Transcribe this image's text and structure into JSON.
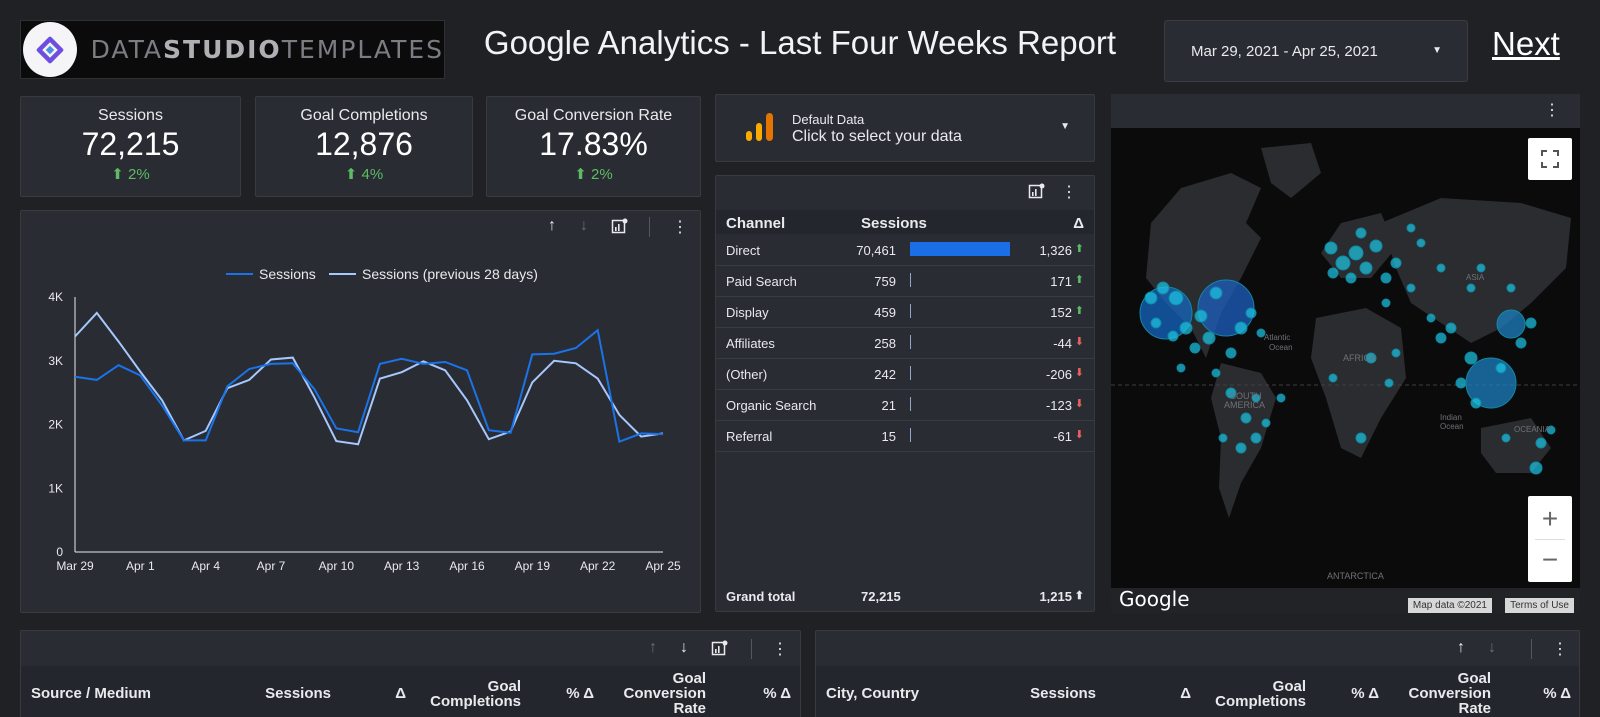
{
  "header": {
    "logo_text_a": "DATA",
    "logo_text_b": "STUDIO",
    "logo_text_c": "TEMPLATES",
    "title": "Google Analytics - Last Four Weeks Report",
    "date_range": "Mar 29, 2021 - Apr 25, 2021",
    "next_label": "Next"
  },
  "kpis": [
    {
      "label": "Sessions",
      "value": "72,215",
      "change": "2%"
    },
    {
      "label": "Goal Completions",
      "value": "12,876",
      "change": "4%"
    },
    {
      "label": "Goal Conversion Rate",
      "value": "17.83%",
      "change": "2%"
    }
  ],
  "datasource": {
    "name": "Default Data",
    "hint": "Click to select your data"
  },
  "channel_table": {
    "headers": {
      "channel": "Channel",
      "sessions": "Sessions",
      "delta": "Δ"
    },
    "rows": [
      {
        "channel": "Direct",
        "sessions": "70,461",
        "delta": "1,326",
        "dir": "up",
        "share": 1.0
      },
      {
        "channel": "Paid Search",
        "sessions": "759",
        "delta": "171",
        "dir": "up",
        "share": 0.011
      },
      {
        "channel": "Display",
        "sessions": "459",
        "delta": "152",
        "dir": "up",
        "share": 0.0065
      },
      {
        "channel": "Affiliates",
        "sessions": "258",
        "delta": "-44",
        "dir": "down",
        "share": 0.0037
      },
      {
        "channel": "(Other)",
        "sessions": "242",
        "delta": "-206",
        "dir": "down",
        "share": 0.0034
      },
      {
        "channel": "Organic Search",
        "sessions": "21",
        "delta": "-123",
        "dir": "down",
        "share": 0.0003
      },
      {
        "channel": "Referral",
        "sessions": "15",
        "delta": "-61",
        "dir": "down",
        "share": 0.0002
      }
    ],
    "grand_total_label": "Grand total",
    "grand_total_sessions": "72,215",
    "grand_total_delta": "1,215"
  },
  "map": {
    "labels": {
      "atlantic": "Atlantic",
      "ocean": "Ocean",
      "africa": "AFRICA",
      "asia": "ASIA",
      "south_america_1": "SOUTH",
      "south_america_2": "AMERICA",
      "indian": "Indian",
      "oceania": "OCEANIA",
      "antarctica": "ANTARCTICA"
    },
    "brand": "Google",
    "map_data": "Map data ©2021",
    "terms": "Terms of Use",
    "zoom_in": "+",
    "zoom_out": "−"
  },
  "bottom_left": {
    "col1": "Source / Medium",
    "col2": "Sessions",
    "col3": "Δ",
    "col4a": "Goal",
    "col4b": "Completions",
    "col5": "% Δ",
    "col6a": "Goal",
    "col6b": "Conversion",
    "col6c": "Rate",
    "col7": "% Δ"
  },
  "bottom_right": {
    "col1": "City, Country",
    "col2": "Sessions",
    "col3": "Δ",
    "col4a": "Goal",
    "col4b": "Completions",
    "col5": "% Δ",
    "col6a": "Goal",
    "col6b": "Conversion",
    "col6c": "Rate",
    "col7": "% Δ"
  },
  "chart_data": {
    "type": "line",
    "x": [
      "Mar 29",
      "Mar 30",
      "Mar 31",
      "Apr 1",
      "Apr 2",
      "Apr 3",
      "Apr 4",
      "Apr 5",
      "Apr 6",
      "Apr 7",
      "Apr 8",
      "Apr 9",
      "Apr 10",
      "Apr 11",
      "Apr 12",
      "Apr 13",
      "Apr 14",
      "Apr 15",
      "Apr 16",
      "Apr 17",
      "Apr 18",
      "Apr 19",
      "Apr 20",
      "Apr 21",
      "Apr 22",
      "Apr 23",
      "Apr 24",
      "Apr 25"
    ],
    "x_tick_labels": [
      "Mar 29",
      "Apr 1",
      "Apr 4",
      "Apr 7",
      "Apr 10",
      "Apr 13",
      "Apr 16",
      "Apr 19",
      "Apr 22",
      "Apr 25"
    ],
    "y_ticks": [
      "0",
      "1K",
      "2K",
      "3K",
      "4K"
    ],
    "ylim": [
      0,
      4000
    ],
    "series": [
      {
        "name": "Sessions",
        "color": "#1a73e8",
        "values": [
          2750,
          2700,
          2930,
          2770,
          2300,
          1750,
          1750,
          2600,
          2870,
          2950,
          2960,
          2550,
          1940,
          1880,
          2950,
          3030,
          2950,
          2980,
          2850,
          1910,
          1870,
          3100,
          3110,
          3200,
          3480,
          1730,
          1860,
          1850
        ]
      },
      {
        "name": "Sessions (previous 28 days)",
        "color": "#a6c8ff",
        "values": [
          3380,
          3750,
          3300,
          2830,
          2380,
          1750,
          1900,
          2570,
          2700,
          3020,
          3050,
          2420,
          1740,
          1690,
          2720,
          2820,
          2990,
          2850,
          2380,
          1770,
          1890,
          2660,
          3000,
          2960,
          2720,
          2150,
          1810,
          1860
        ]
      }
    ],
    "legend_position": "top-center",
    "grid": false
  }
}
